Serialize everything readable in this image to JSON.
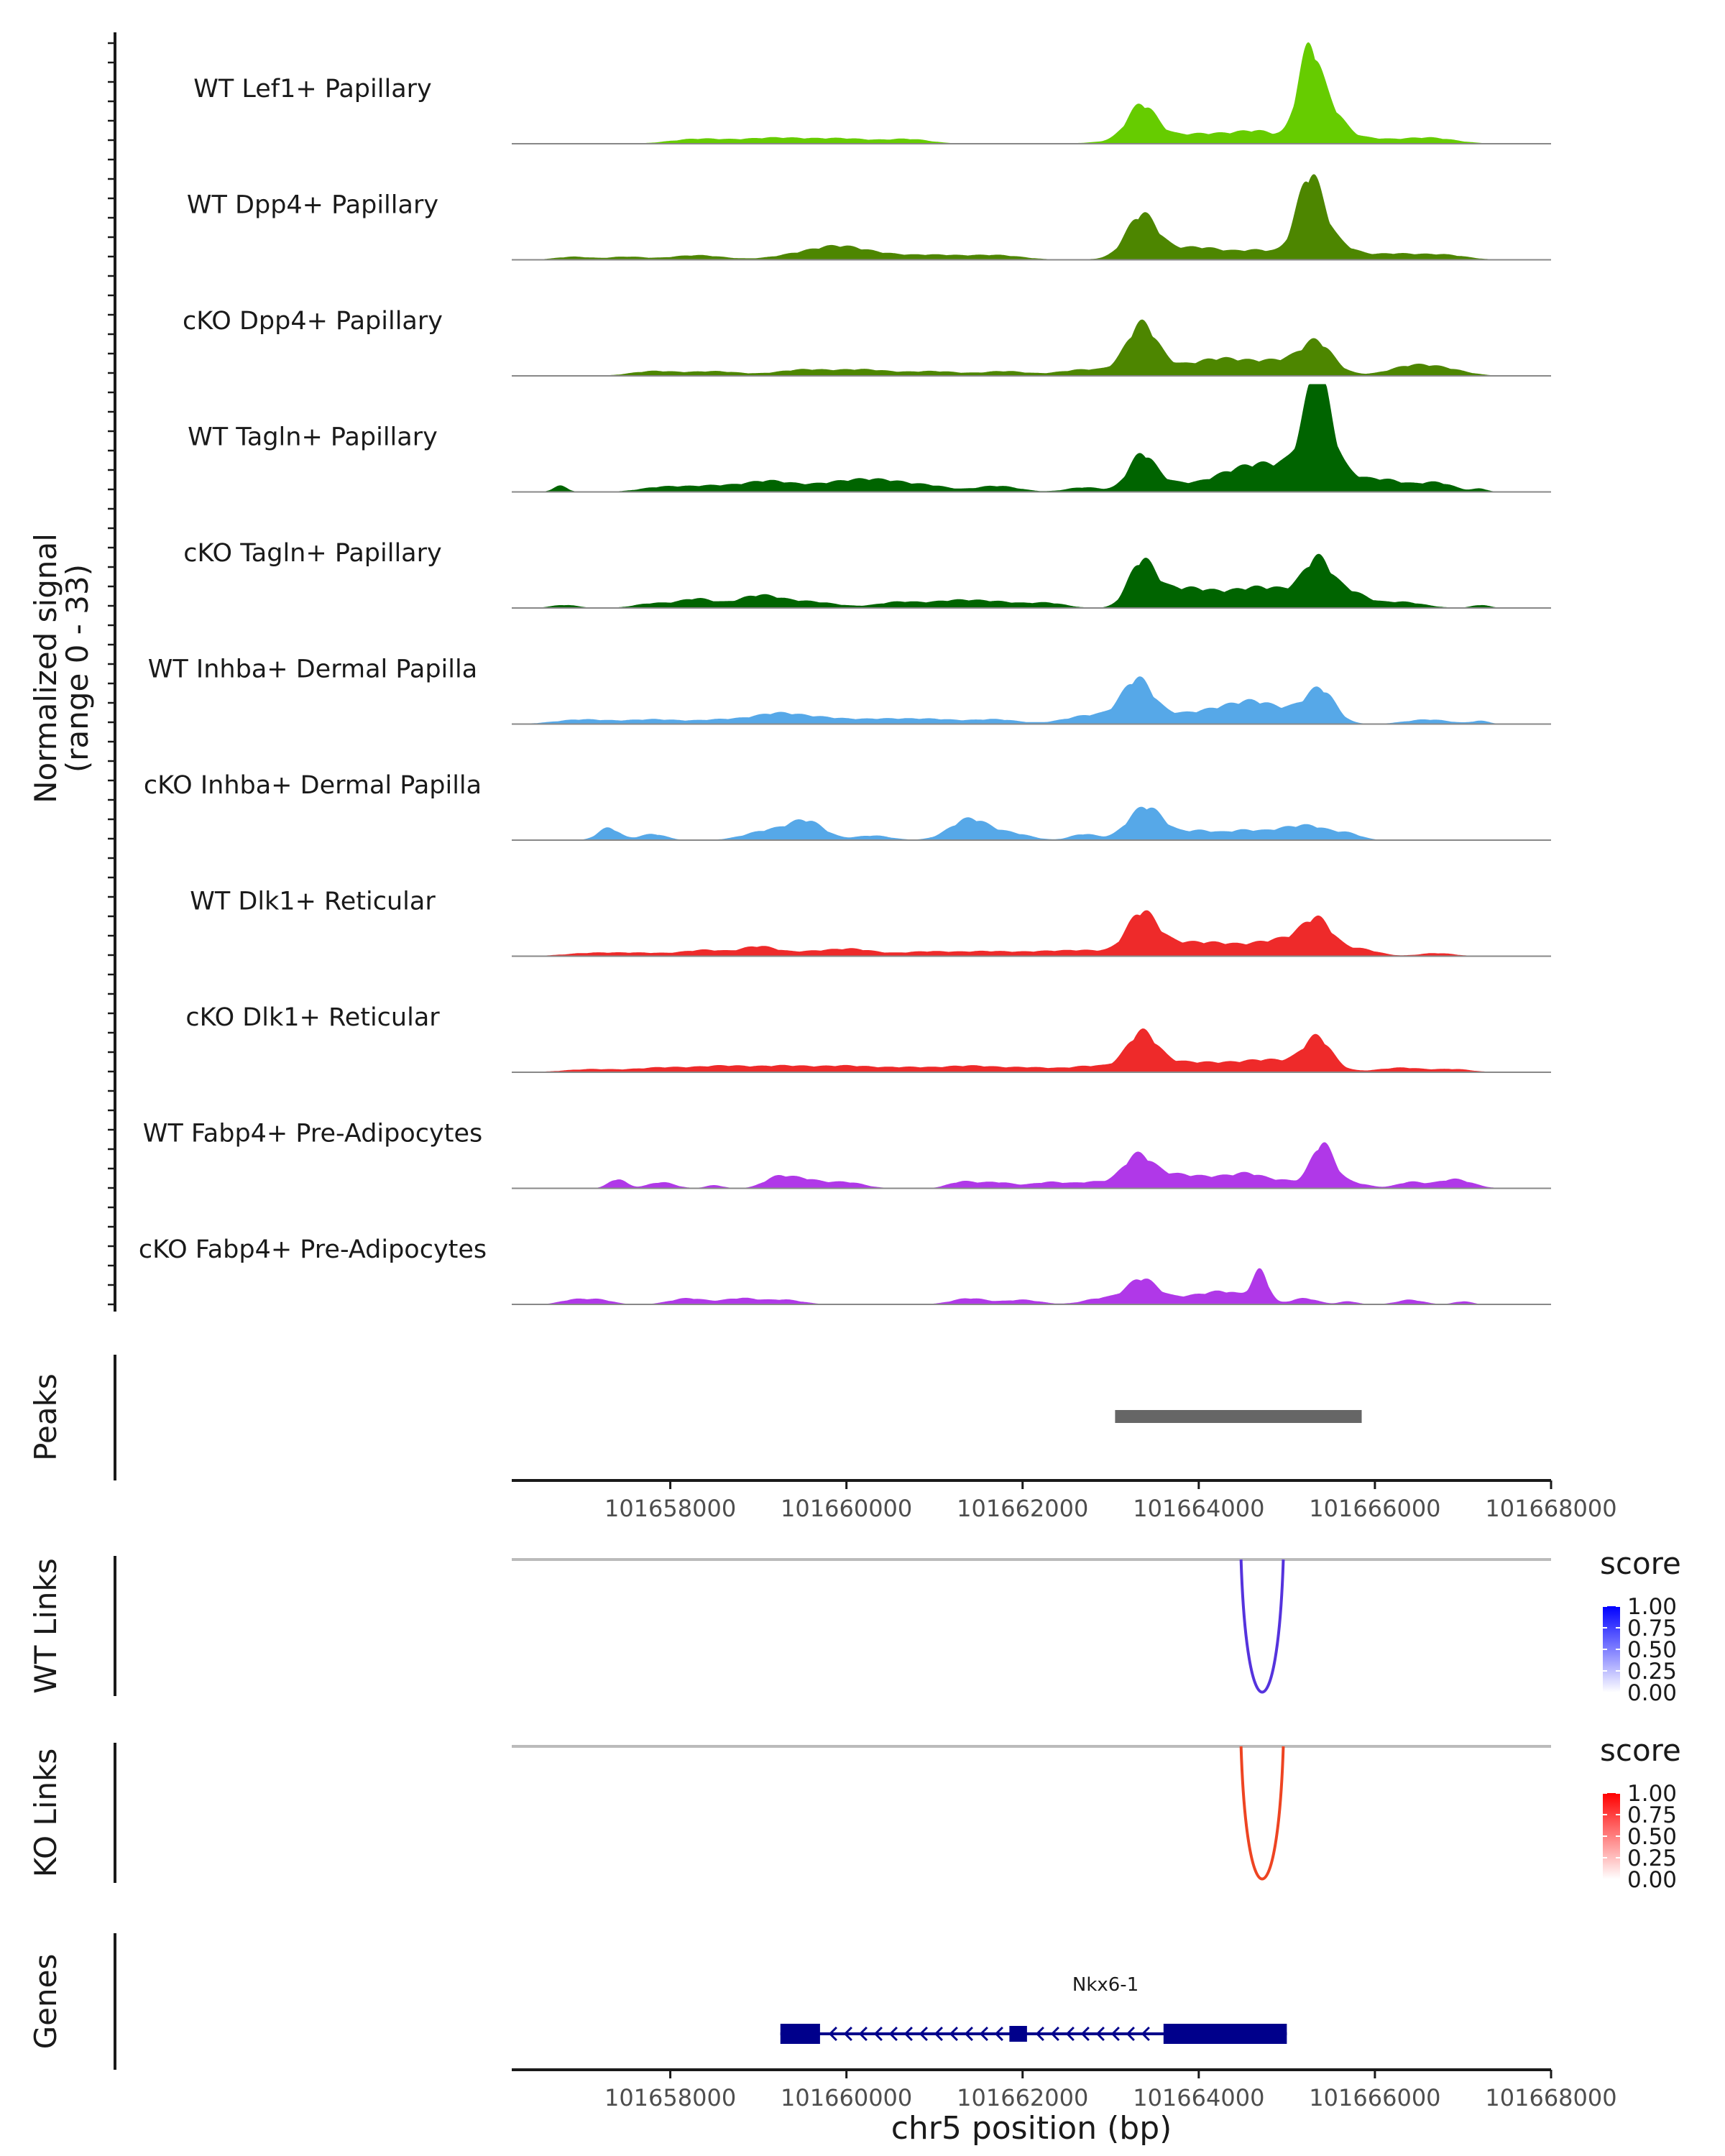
{
  "chart_data": {
    "type": "area",
    "chromosome": "chr5",
    "xlabel": "chr5 position (bp)",
    "ylabel_line1": "Normalized signal",
    "ylabel_line2": "(range 0 - 33)",
    "y_range": [
      0,
      33
    ],
    "x_range": [
      101656200,
      101668000
    ],
    "x_ticks": [
      101658000,
      101660000,
      101662000,
      101664000,
      101666000,
      101668000
    ],
    "tracks": [
      {
        "name": "WT Lef1+ Papillary",
        "color": "#66CC00",
        "peaks": [
          [
            101658300,
            1.5,
            300
          ],
          [
            101659200,
            2,
            400
          ],
          [
            101660000,
            1.5,
            300
          ],
          [
            101660700,
            1.5,
            250
          ],
          [
            101663350,
            11,
            160
          ],
          [
            101663700,
            2.5,
            500
          ],
          [
            101664200,
            1.5,
            300
          ],
          [
            101664700,
            3.5,
            250
          ],
          [
            101665250,
            29,
            130
          ],
          [
            101665500,
            9,
            150
          ],
          [
            101665800,
            2,
            300
          ],
          [
            101666600,
            2,
            300
          ]
        ]
      },
      {
        "name": "WT Dpp4+ Papillary",
        "color": "#4D8600",
        "peaks": [
          [
            101656900,
            1,
            200
          ],
          [
            101657500,
            1,
            200
          ],
          [
            101658300,
            1.5,
            300
          ],
          [
            101659500,
            2,
            300
          ],
          [
            101659900,
            3,
            250
          ],
          [
            101660300,
            2,
            300
          ],
          [
            101661000,
            1.5,
            300
          ],
          [
            101661700,
            1.5,
            300
          ],
          [
            101663350,
            13,
            170
          ],
          [
            101663700,
            3,
            400
          ],
          [
            101664100,
            2,
            250
          ],
          [
            101664700,
            3,
            250
          ],
          [
            101665260,
            26,
            150
          ],
          [
            101665550,
            5,
            200
          ],
          [
            101666200,
            2,
            300
          ],
          [
            101666800,
            1.5,
            250
          ]
        ]
      },
      {
        "name": "cKO Dpp4+ Papillary",
        "color": "#4D8600",
        "peaks": [
          [
            101657800,
            1.5,
            250
          ],
          [
            101658500,
            1.5,
            300
          ],
          [
            101659500,
            2,
            300
          ],
          [
            101660200,
            2,
            300
          ],
          [
            101661000,
            1.5,
            300
          ],
          [
            101661800,
            1.5,
            250
          ],
          [
            101662700,
            2,
            300
          ],
          [
            101663350,
            15,
            170
          ],
          [
            101663700,
            3,
            400
          ],
          [
            101664250,
            4,
            250
          ],
          [
            101664700,
            3,
            250
          ],
          [
            101665200,
            5,
            300
          ],
          [
            101665350,
            7,
            160
          ],
          [
            101666400,
            3,
            250
          ],
          [
            101666800,
            2,
            250
          ]
        ]
      },
      {
        "name": "WT Tagln+ Papillary",
        "color": "#006400",
        "peaks": [
          [
            101656750,
            2,
            80
          ],
          [
            101657900,
            1.5,
            250
          ],
          [
            101658500,
            2,
            300
          ],
          [
            101659100,
            3,
            250
          ],
          [
            101659700,
            2,
            350
          ],
          [
            101660200,
            3,
            300
          ],
          [
            101660600,
            2,
            250
          ],
          [
            101661000,
            1.5,
            200
          ],
          [
            101661700,
            2,
            250
          ],
          [
            101662700,
            1.5,
            200
          ],
          [
            101663350,
            11,
            150
          ],
          [
            101663700,
            3,
            300
          ],
          [
            101664250,
            3,
            200
          ],
          [
            101664650,
            8,
            260
          ],
          [
            101665200,
            9,
            250
          ],
          [
            101665350,
            30,
            140
          ],
          [
            101665600,
            5,
            200
          ],
          [
            101666100,
            4,
            250
          ],
          [
            101666700,
            3,
            200
          ],
          [
            101667200,
            1,
            80
          ]
        ]
      },
      {
        "name": "cKO Tagln+ Papillary",
        "color": "#006400",
        "peaks": [
          [
            101656800,
            1,
            150
          ],
          [
            101657800,
            1.5,
            200
          ],
          [
            101658300,
            3,
            200
          ],
          [
            101659000,
            4,
            250
          ],
          [
            101659600,
            2,
            300
          ],
          [
            101660600,
            2,
            250
          ],
          [
            101661200,
            2,
            250
          ],
          [
            101661700,
            2,
            300
          ],
          [
            101662300,
            1.5,
            200
          ],
          [
            101663350,
            14,
            150
          ],
          [
            101663700,
            5,
            250
          ],
          [
            101664100,
            4,
            250
          ],
          [
            101664600,
            5,
            250
          ],
          [
            101665100,
            5,
            300
          ],
          [
            101665350,
            12,
            150
          ],
          [
            101665700,
            5,
            200
          ],
          [
            101666300,
            2,
            250
          ],
          [
            101667200,
            1,
            100
          ]
        ]
      },
      {
        "name": "WT Inhba+ Dermal Papilla",
        "color": "#56A8E8",
        "peaks": [
          [
            101657000,
            1.5,
            300
          ],
          [
            101657800,
            1.5,
            300
          ],
          [
            101658600,
            1.5,
            300
          ],
          [
            101659200,
            3,
            250
          ],
          [
            101659700,
            2,
            300
          ],
          [
            101660400,
            1.5,
            300
          ],
          [
            101661000,
            1.5,
            300
          ],
          [
            101661700,
            1.5,
            250
          ],
          [
            101662800,
            3,
            300
          ],
          [
            101663300,
            13,
            170
          ],
          [
            101663700,
            3,
            300
          ],
          [
            101664250,
            4,
            250
          ],
          [
            101664650,
            6,
            230
          ],
          [
            101665200,
            5,
            250
          ],
          [
            101665400,
            8,
            150
          ],
          [
            101666600,
            1.5,
            250
          ],
          [
            101667200,
            1,
            100
          ]
        ]
      },
      {
        "name": "cKO Inhba+ Dermal Papilla",
        "color": "#56A8E8",
        "peaks": [
          [
            101657300,
            4,
            120
          ],
          [
            101657800,
            2,
            150
          ],
          [
            101659100,
            3,
            250
          ],
          [
            101659550,
            6,
            200
          ],
          [
            101660300,
            1.5,
            200
          ],
          [
            101661400,
            7,
            220
          ],
          [
            101661900,
            2,
            200
          ],
          [
            101662700,
            2,
            150
          ],
          [
            101663400,
            11,
            200
          ],
          [
            101664000,
            3,
            200
          ],
          [
            101664500,
            3,
            200
          ],
          [
            101664950,
            3,
            200
          ],
          [
            101665300,
            4,
            200
          ],
          [
            101665700,
            2,
            150
          ]
        ]
      },
      {
        "name": "WT Dlk1+ Reticular",
        "color": "#EE2A2A",
        "peaks": [
          [
            101657100,
            1,
            300
          ],
          [
            101657700,
            1,
            300
          ],
          [
            101658400,
            2,
            250
          ],
          [
            101659000,
            3,
            200
          ],
          [
            101659600,
            1.5,
            300
          ],
          [
            101660100,
            2,
            250
          ],
          [
            101660900,
            1.5,
            300
          ],
          [
            101661600,
            1.5,
            300
          ],
          [
            101662300,
            1.5,
            300
          ],
          [
            101662800,
            1.5,
            250
          ],
          [
            101663350,
            13,
            170
          ],
          [
            101663750,
            4,
            300
          ],
          [
            101664250,
            3,
            250
          ],
          [
            101664750,
            3,
            250
          ],
          [
            101665200,
            5,
            300
          ],
          [
            101665350,
            8,
            160
          ],
          [
            101665850,
            2,
            200
          ],
          [
            101666700,
            1,
            200
          ]
        ]
      },
      {
        "name": "cKO Dlk1+ Reticular",
        "color": "#EE2A2A",
        "peaks": [
          [
            101657100,
            1,
            300
          ],
          [
            101657900,
            1.5,
            300
          ],
          [
            101658600,
            2,
            300
          ],
          [
            101659300,
            2,
            300
          ],
          [
            101660000,
            2,
            300
          ],
          [
            101660700,
            1.5,
            300
          ],
          [
            101661400,
            2,
            300
          ],
          [
            101662100,
            1.5,
            300
          ],
          [
            101662800,
            2,
            250
          ],
          [
            101663350,
            12,
            170
          ],
          [
            101663750,
            3,
            300
          ],
          [
            101664250,
            2,
            250
          ],
          [
            101664700,
            3,
            250
          ],
          [
            101665200,
            3,
            300
          ],
          [
            101665350,
            9,
            150
          ],
          [
            101666300,
            1.5,
            250
          ],
          [
            101666900,
            1,
            200
          ]
        ]
      },
      {
        "name": "WT Fabp4+ Pre-Adipocytes",
        "color": "#B038E8",
        "peaks": [
          [
            101657400,
            3,
            100
          ],
          [
            101657900,
            2,
            150
          ],
          [
            101658500,
            1,
            100
          ],
          [
            101659200,
            3,
            150
          ],
          [
            101659500,
            3,
            200
          ],
          [
            101660000,
            2,
            200
          ],
          [
            101661300,
            2,
            150
          ],
          [
            101661700,
            2,
            200
          ],
          [
            101662300,
            2,
            200
          ],
          [
            101662800,
            2,
            200
          ],
          [
            101663300,
            10,
            170
          ],
          [
            101663700,
            4,
            250
          ],
          [
            101664200,
            3,
            250
          ],
          [
            101664600,
            4,
            200
          ],
          [
            101665000,
            2,
            150
          ],
          [
            101665400,
            14,
            130
          ],
          [
            101665700,
            2,
            200
          ],
          [
            101666400,
            2,
            150
          ],
          [
            101666900,
            3,
            200
          ]
        ]
      },
      {
        "name": "cKO Fabp4+ Pre-Adipocytes",
        "color": "#B038E8",
        "peaks": [
          [
            101656900,
            1.5,
            150
          ],
          [
            101657200,
            1.5,
            150
          ],
          [
            101658200,
            2,
            200
          ],
          [
            101658800,
            2,
            200
          ],
          [
            101659300,
            1.5,
            200
          ],
          [
            101661400,
            2,
            200
          ],
          [
            101662000,
            1.5,
            200
          ],
          [
            101662900,
            2,
            200
          ],
          [
            101663350,
            8,
            170
          ],
          [
            101663800,
            2,
            250
          ],
          [
            101664300,
            4,
            250
          ],
          [
            101664700,
            10,
            90
          ],
          [
            101665200,
            2,
            150
          ],
          [
            101665700,
            1,
            100
          ],
          [
            101666400,
            1.5,
            150
          ],
          [
            101667000,
            1,
            100
          ]
        ]
      }
    ],
    "peaks_track": {
      "label": "Peaks",
      "regions": [
        [
          101663050,
          101665850
        ]
      ]
    },
    "links_tracks": [
      {
        "label": "WT Links",
        "color": "#5533DD",
        "legend_low": "#FFFFFF",
        "legend_high": "#0000FF",
        "links": [
          {
            "start": 101664480,
            "end": 101664960,
            "score": 0.8
          }
        ]
      },
      {
        "label": "KO Links",
        "color": "#EE4422",
        "legend_low": "#FFFFFF",
        "legend_high": "#FF0000",
        "links": [
          {
            "start": 101664480,
            "end": 101664960,
            "score": 0.8
          }
        ]
      }
    ],
    "legend": {
      "title": "score",
      "ticks": [
        "1.00",
        "0.75",
        "0.50",
        "0.25",
        "0.00"
      ]
    },
    "genes_track": {
      "label": "Genes",
      "color": "#00008B",
      "genes": [
        {
          "name": "Nkx6-1",
          "strand": "-",
          "start": 101659250,
          "end": 101665000,
          "exons": [
            [
              101659250,
              101659700
            ],
            [
              101661850,
              101662050
            ],
            [
              101663600,
              101665000
            ]
          ]
        }
      ]
    }
  }
}
